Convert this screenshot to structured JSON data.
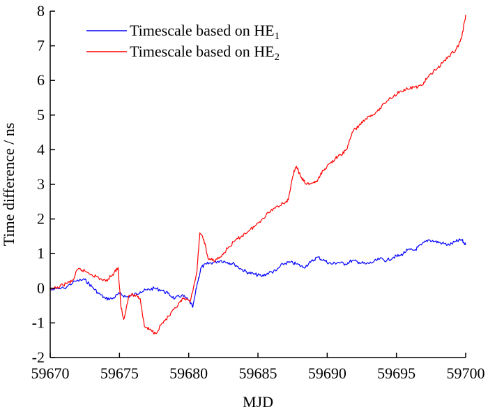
{
  "chart_data": {
    "type": "line",
    "xlabel": "MJD",
    "ylabel": "Time difference / ns",
    "xlim": [
      59670,
      59700
    ],
    "ylim": [
      -2,
      8
    ],
    "xticks": [
      59670,
      59675,
      59680,
      59685,
      59690,
      59695,
      59700
    ],
    "yticks": [
      -2,
      -1,
      0,
      1,
      2,
      3,
      4,
      5,
      6,
      7,
      8
    ],
    "grid": false,
    "legend_position": "top-left",
    "series": [
      {
        "name": "Timescale based on HE",
        "subscript": "1",
        "color": "#0000ff",
        "x": [
          59670,
          59671,
          59671.8,
          59672.5,
          59673,
          59673.5,
          59674,
          59674.5,
          59675,
          59675.5,
          59676,
          59676.5,
          59677,
          59677.5,
          59678,
          59678.5,
          59679,
          59679.5,
          59680,
          59680.3,
          59680.6,
          59680.9,
          59681.3,
          59681.8,
          59682.3,
          59682.8,
          59683.3,
          59683.8,
          59684.3,
          59684.8,
          59685.3,
          59685.8,
          59686.3,
          59686.8,
          59687.3,
          59687.8,
          59688.3,
          59688.8,
          59689.3,
          59689.8,
          59690.3,
          59690.8,
          59691.3,
          59691.8,
          59692.3,
          59692.8,
          59693.3,
          59693.8,
          59694.3,
          59694.8,
          59695.3,
          59695.8,
          59696.3,
          59696.8,
          59697.3,
          59697.8,
          59698.3,
          59698.8,
          59699.3,
          59699.7,
          59700
        ],
        "y": [
          -0.05,
          0.0,
          0.2,
          0.25,
          0.05,
          -0.15,
          -0.3,
          -0.3,
          -0.15,
          -0.25,
          -0.2,
          -0.1,
          -0.05,
          0.0,
          -0.05,
          -0.15,
          -0.3,
          -0.2,
          -0.35,
          -0.55,
          0.1,
          0.6,
          0.7,
          0.75,
          0.8,
          0.75,
          0.7,
          0.55,
          0.45,
          0.4,
          0.35,
          0.45,
          0.5,
          0.7,
          0.75,
          0.7,
          0.6,
          0.75,
          0.9,
          0.8,
          0.7,
          0.75,
          0.7,
          0.8,
          0.75,
          0.7,
          0.75,
          0.85,
          0.8,
          0.9,
          0.95,
          1.1,
          1.1,
          1.25,
          1.4,
          1.35,
          1.3,
          1.25,
          1.35,
          1.4,
          1.25
        ]
      },
      {
        "name": "Timescale based on HE",
        "subscript": "2",
        "color": "#ff0000",
        "x": [
          59670,
          59670.7,
          59671.2,
          59671.6,
          59672,
          59672.5,
          59673,
          59673.5,
          59674,
          59674.5,
          59674.9,
          59675.1,
          59675.3,
          59675.7,
          59676.2,
          59676.5,
          59676.8,
          59677.2,
          59677.6,
          59678.1,
          59678.6,
          59679.1,
          59679.6,
          59680.1,
          59680.6,
          59680.8,
          59681.1,
          59681.4,
          59681.8,
          59682.3,
          59682.8,
          59683.3,
          59683.8,
          59684.3,
          59684.8,
          59685.3,
          59685.8,
          59686.3,
          59686.8,
          59687.2,
          59687.6,
          59687.8,
          59688.1,
          59688.5,
          59689,
          59689.3,
          59689.7,
          59690.2,
          59690.6,
          59691,
          59691.4,
          59691.8,
          59692.3,
          59692.8,
          59693.3,
          59693.8,
          59694.3,
          59694.8,
          59695.3,
          59695.8,
          59696.3,
          59696.8,
          59697.3,
          59697.8,
          59698.3,
          59698.8,
          59699.3,
          59699.7,
          59700
        ],
        "y": [
          -0.05,
          0.05,
          0.15,
          0.2,
          0.55,
          0.5,
          0.4,
          0.3,
          0.2,
          0.4,
          0.6,
          -0.5,
          -0.9,
          -0.2,
          -0.2,
          -0.3,
          -1.1,
          -1.2,
          -1.3,
          -1.0,
          -0.8,
          -0.55,
          -0.3,
          -0.4,
          0.5,
          1.6,
          1.4,
          0.85,
          0.8,
          0.9,
          1.15,
          1.35,
          1.5,
          1.65,
          1.8,
          2.0,
          2.2,
          2.35,
          2.45,
          2.55,
          3.4,
          3.5,
          3.2,
          3.0,
          3.05,
          3.1,
          3.4,
          3.6,
          3.75,
          3.85,
          4.0,
          4.5,
          4.7,
          4.9,
          5.0,
          5.2,
          5.4,
          5.55,
          5.7,
          5.75,
          5.8,
          5.85,
          6.1,
          6.3,
          6.5,
          6.7,
          6.9,
          7.2,
          7.9
        ]
      }
    ]
  }
}
